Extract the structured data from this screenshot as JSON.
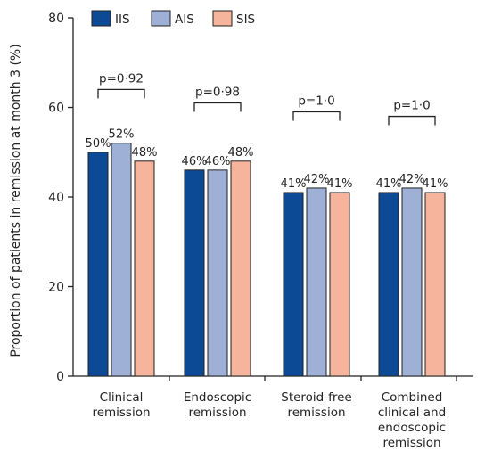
{
  "chart_data": {
    "type": "bar",
    "ylabel": "Proportion of patients in remission at month 3 (%)",
    "ylim": [
      0,
      80
    ],
    "yticks": [
      0,
      20,
      40,
      60,
      80
    ],
    "grid": false,
    "legend": "top-left",
    "categories": [
      [
        "Clinical",
        "remission"
      ],
      [
        "Endoscopic",
        "remission"
      ],
      [
        "Steroid-free",
        "remission"
      ],
      [
        "Combined",
        "clinical and",
        "endoscopic",
        "remission"
      ]
    ],
    "series": [
      {
        "name": "IIS",
        "color": "#0d4a96",
        "values": [
          50,
          46,
          41,
          41
        ],
        "labels": [
          "50%",
          "46%",
          "41%",
          "41%"
        ]
      },
      {
        "name": "AIS",
        "color": "#9eb0d6",
        "values": [
          52,
          46,
          42,
          42
        ],
        "labels": [
          "52%",
          "46%",
          "42%",
          "42%"
        ]
      },
      {
        "name": "SIS",
        "color": "#f7b49c",
        "values": [
          48,
          48,
          41,
          41
        ],
        "labels": [
          "48%",
          "48%",
          "41%",
          "41%"
        ]
      }
    ],
    "pvalues": [
      "p=0·92",
      "p=0·98",
      "p=1·0",
      "p=1·0"
    ],
    "bracket_level": [
      64,
      61,
      59,
      58
    ]
  }
}
